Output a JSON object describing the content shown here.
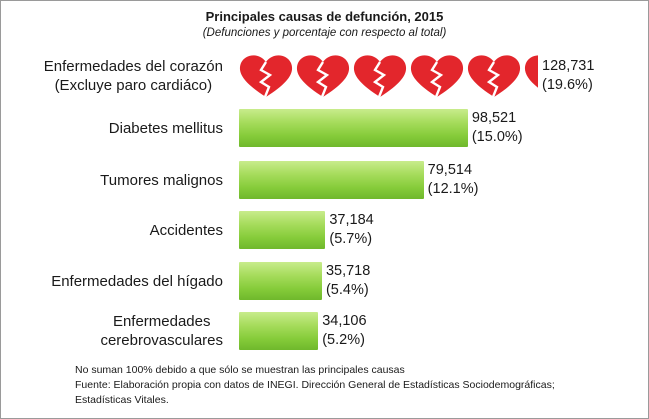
{
  "chart_data": {
    "type": "bar",
    "orientation": "horizontal",
    "title": "Principales causas de defunción, 2015",
    "subtitle": "(Defunciones y porcentaje con respecto al total)",
    "categories": [
      "Enfermedades del corazón\n(Excluye paro cardiáco)",
      "Diabetes mellitus",
      "Tumores malignos",
      "Accidentes",
      "Enfermedades del hígado",
      "Enfermedades\ncerebrovasculares"
    ],
    "values": [
      128731,
      98521,
      79514,
      37184,
      35718,
      34106
    ],
    "value_labels": [
      "128,731",
      "98,521",
      "79,514",
      "37,184",
      "35,718",
      "34,106"
    ],
    "percent_labels": [
      "(19.6%)",
      "(15.0%)",
      "(12.1%)",
      "(5.7%)",
      "(5.4%)",
      "(5.2%)"
    ],
    "first_bar_style": "broken-hearts",
    "bar_color": "#8cd043",
    "heart_color": "#e3262c"
  },
  "notes": [
    "No suman 100% debido a que sólo se muestran las principales causas",
    "Fuente: Elaboración propia con datos de INEGI.  Dirección General de Estadísticas Sociodemográficas;",
    "Estadísticas Vitales."
  ]
}
